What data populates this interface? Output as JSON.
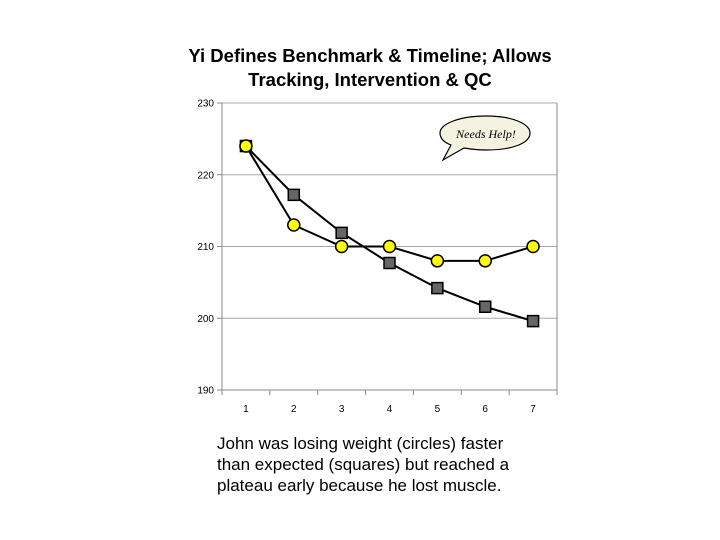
{
  "title": {
    "line1": "Yi Defines Benchmark & Timeline; Allows",
    "line2": "Tracking, Intervention & QC"
  },
  "annotation": {
    "text": "Needs Help!"
  },
  "caption": {
    "line1": "John was losing weight (circles) faster",
    "line2": "than expected (squares) but reached a",
    "line3": "plateau early because he lost muscle."
  },
  "chart_data": {
    "type": "line",
    "title": "Yi Defines Benchmark & Timeline; Allows Tracking, Intervention & QC",
    "xlabel": "",
    "ylabel": "",
    "x": [
      1,
      2,
      3,
      4,
      5,
      6,
      7
    ],
    "xlim": [
      0.5,
      7.5
    ],
    "ylim": [
      190,
      230
    ],
    "yticks": [
      190,
      200,
      210,
      220,
      230
    ],
    "grid": true,
    "series": [
      {
        "name": "circles (actual)",
        "marker": "circle",
        "color": "#ffff00",
        "values": [
          224,
          213,
          210,
          210,
          208,
          208,
          210
        ]
      },
      {
        "name": "squares (expected)",
        "marker": "square",
        "color": "#666666",
        "values": [
          224,
          217.2,
          211.9,
          207.7,
          204.2,
          201.6,
          199.6
        ]
      }
    ]
  }
}
